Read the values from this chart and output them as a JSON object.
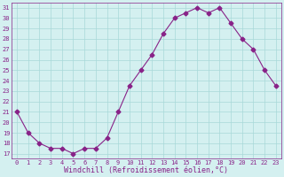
{
  "x": [
    0,
    1,
    2,
    3,
    4,
    5,
    6,
    7,
    8,
    9,
    10,
    11,
    12,
    13,
    14,
    15,
    16,
    17,
    18,
    19,
    20,
    21,
    22,
    23
  ],
  "y": [
    21,
    19,
    18,
    17.5,
    17.5,
    17,
    17.5,
    17.5,
    18.5,
    21,
    23.5,
    25,
    26.5,
    28.5,
    30,
    30.5,
    31,
    30.5,
    31,
    29.5,
    28,
    27,
    25,
    23.5
  ],
  "line_color": "#882288",
  "marker": "D",
  "marker_size": 2.5,
  "bg_color": "#d4f0f0",
  "grid_color": "#a8d8d8",
  "xlabel": "Windchill (Refroidissement éolien,°C)",
  "xlabel_color": "#882288",
  "tick_color": "#882288",
  "ylim_min": 16.5,
  "ylim_max": 31.5,
  "xlim_min": -0.5,
  "xlim_max": 23.5,
  "yticks": [
    17,
    18,
    19,
    20,
    21,
    22,
    23,
    24,
    25,
    26,
    27,
    28,
    29,
    30,
    31
  ],
  "xticks": [
    0,
    1,
    2,
    3,
    4,
    5,
    6,
    7,
    8,
    9,
    10,
    11,
    12,
    13,
    14,
    15,
    16,
    17,
    18,
    19,
    20,
    21,
    22,
    23
  ],
  "tick_fontsize": 5,
  "xlabel_fontsize": 6,
  "line_width": 0.8
}
